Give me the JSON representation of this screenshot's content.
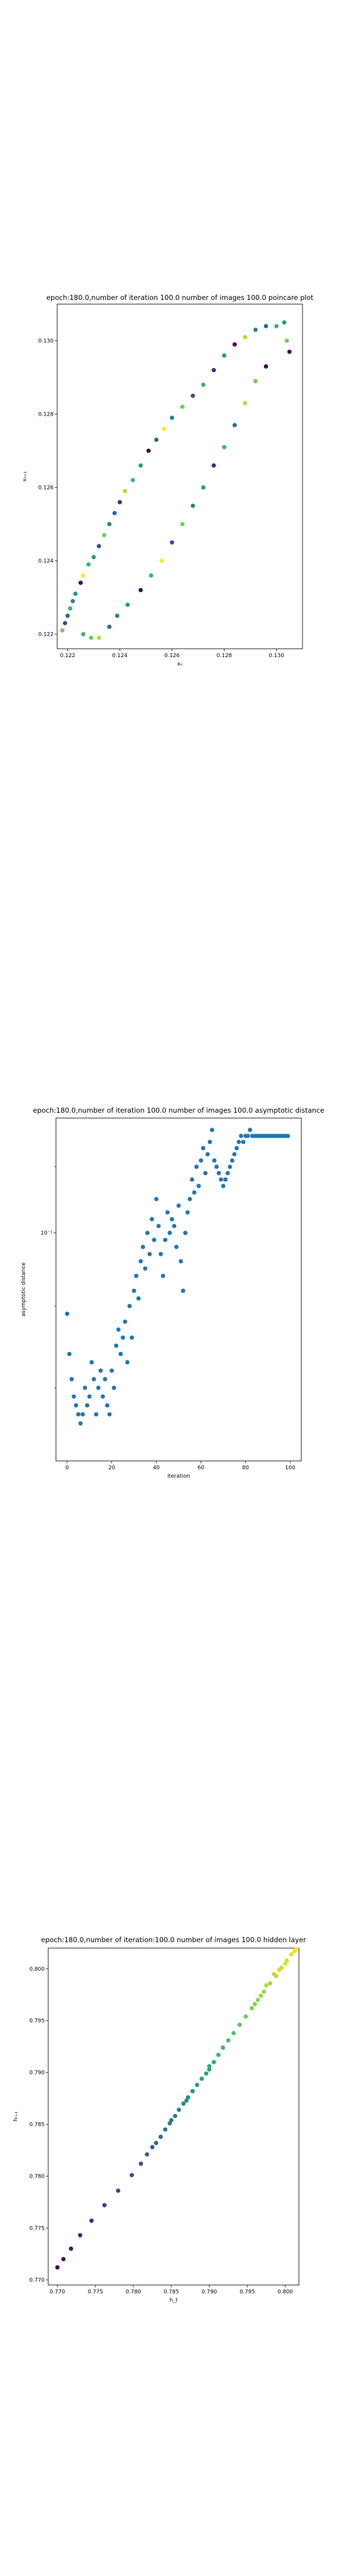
{
  "chart_data": [
    {
      "type": "scatter",
      "title": "epoch:180.0,number of iteration 100.0 number of images 100.0 poincare plot",
      "xlabel": "xₙ",
      "ylabel": "xₙ₊₁",
      "xlim": [
        0.1216,
        0.131
      ],
      "ylim": [
        0.1216,
        0.131
      ],
      "xticks": [
        {
          "v": 0.122,
          "label": "0.122"
        },
        {
          "v": 0.124,
          "label": "0.124"
        },
        {
          "v": 0.126,
          "label": "0.126"
        },
        {
          "v": 0.128,
          "label": "0.128"
        },
        {
          "v": 0.13,
          "label": "0.130"
        }
      ],
      "yticks": [
        {
          "v": 0.122,
          "label": "0.122"
        },
        {
          "v": 0.124,
          "label": "0.124"
        },
        {
          "v": 0.126,
          "label": "0.126"
        },
        {
          "v": 0.128,
          "label": "0.128"
        },
        {
          "v": 0.13,
          "label": "0.130"
        }
      ],
      "points": [
        {
          "x": 0.1218,
          "y": 0.1221,
          "c": "#6ece58"
        },
        {
          "x": 0.1219,
          "y": 0.1223,
          "c": "#3e4a89"
        },
        {
          "x": 0.122,
          "y": 0.1225,
          "c": "#31688e"
        },
        {
          "x": 0.1221,
          "y": 0.1227,
          "c": "#35b779"
        },
        {
          "x": 0.1222,
          "y": 0.1229,
          "c": "#26828e"
        },
        {
          "x": 0.1223,
          "y": 0.1231,
          "c": "#1f9e89"
        },
        {
          "x": 0.1225,
          "y": 0.1234,
          "c": "#440154"
        },
        {
          "x": 0.1226,
          "y": 0.1236,
          "c": "#fde725"
        },
        {
          "x": 0.1228,
          "y": 0.1239,
          "c": "#35b779"
        },
        {
          "x": 0.123,
          "y": 0.1241,
          "c": "#1f9e89"
        },
        {
          "x": 0.1232,
          "y": 0.1244,
          "c": "#3e4a89"
        },
        {
          "x": 0.1234,
          "y": 0.1247,
          "c": "#6ece58"
        },
        {
          "x": 0.1236,
          "y": 0.125,
          "c": "#26828e"
        },
        {
          "x": 0.1238,
          "y": 0.1253,
          "c": "#31688e"
        },
        {
          "x": 0.124,
          "y": 0.1256,
          "c": "#482878"
        },
        {
          "x": 0.1242,
          "y": 0.1259,
          "c": "#b5de2b"
        },
        {
          "x": 0.1245,
          "y": 0.1262,
          "c": "#35b779"
        },
        {
          "x": 0.1248,
          "y": 0.1266,
          "c": "#1f9e89"
        },
        {
          "x": 0.1251,
          "y": 0.127,
          "c": "#440154"
        },
        {
          "x": 0.1254,
          "y": 0.1273,
          "c": "#31688e"
        },
        {
          "x": 0.1257,
          "y": 0.1276,
          "c": "#fde725"
        },
        {
          "x": 0.126,
          "y": 0.1279,
          "c": "#26828e"
        },
        {
          "x": 0.1264,
          "y": 0.1282,
          "c": "#6ece58"
        },
        {
          "x": 0.1268,
          "y": 0.1285,
          "c": "#3e4a89"
        },
        {
          "x": 0.1272,
          "y": 0.1288,
          "c": "#35b779"
        },
        {
          "x": 0.1276,
          "y": 0.1292,
          "c": "#482878"
        },
        {
          "x": 0.128,
          "y": 0.1296,
          "c": "#1f9e89"
        },
        {
          "x": 0.1284,
          "y": 0.1299,
          "c": "#440154"
        },
        {
          "x": 0.1288,
          "y": 0.1301,
          "c": "#b5de2b"
        },
        {
          "x": 0.1292,
          "y": 0.1303,
          "c": "#26828e"
        },
        {
          "x": 0.1296,
          "y": 0.1304,
          "c": "#31688e"
        },
        {
          "x": 0.13,
          "y": 0.1304,
          "c": "#35b779"
        },
        {
          "x": 0.1303,
          "y": 0.1305,
          "c": "#1f9e89"
        },
        {
          "x": 0.1304,
          "y": 0.13,
          "c": "#6ece58"
        },
        {
          "x": 0.1305,
          "y": 0.1297,
          "c": "#440154"
        },
        {
          "x": 0.1226,
          "y": 0.122,
          "c": "#35b779"
        },
        {
          "x": 0.1229,
          "y": 0.1219,
          "c": "#6ece58"
        },
        {
          "x": 0.1232,
          "y": 0.1219,
          "c": "#b5de2b"
        },
        {
          "x": 0.1236,
          "y": 0.1222,
          "c": "#31688e"
        },
        {
          "x": 0.1239,
          "y": 0.1225,
          "c": "#26828e"
        },
        {
          "x": 0.1243,
          "y": 0.1228,
          "c": "#1f9e89"
        },
        {
          "x": 0.1248,
          "y": 0.1232,
          "c": "#440154"
        },
        {
          "x": 0.1252,
          "y": 0.1236,
          "c": "#35b779"
        },
        {
          "x": 0.1256,
          "y": 0.124,
          "c": "#fde725"
        },
        {
          "x": 0.126,
          "y": 0.1245,
          "c": "#3e4a89"
        },
        {
          "x": 0.1264,
          "y": 0.125,
          "c": "#6ece58"
        },
        {
          "x": 0.1268,
          "y": 0.1255,
          "c": "#26828e"
        },
        {
          "x": 0.1272,
          "y": 0.126,
          "c": "#1f9e89"
        },
        {
          "x": 0.1276,
          "y": 0.1266,
          "c": "#482878"
        },
        {
          "x": 0.128,
          "y": 0.1271,
          "c": "#35b779"
        },
        {
          "x": 0.1284,
          "y": 0.1277,
          "c": "#31688e"
        },
        {
          "x": 0.1288,
          "y": 0.1283,
          "c": "#b5de2b"
        },
        {
          "x": 0.1292,
          "y": 0.1289,
          "c": "#6ece58"
        },
        {
          "x": 0.1296,
          "y": 0.1293,
          "c": "#440154"
        }
      ]
    },
    {
      "type": "scatter",
      "title": "epoch:180.0,number of iteration 100.0  number of images 100.0 asymptotic distance",
      "xlabel": "iteration",
      "ylabel": "asymptotic distance",
      "xlim": [
        -5,
        105
      ],
      "ylim": [
        0.072,
        0.118
      ],
      "yscale": "log",
      "xticks": [
        {
          "v": 0,
          "label": "0"
        },
        {
          "v": 20,
          "label": "20"
        },
        {
          "v": 40,
          "label": "40"
        },
        {
          "v": 60,
          "label": "60"
        },
        {
          "v": 80,
          "label": "80"
        },
        {
          "v": 100,
          "label": "100"
        }
      ],
      "yticks": [
        {
          "v": 0.1,
          "label": "10⁻¹"
        }
      ],
      "color": "#1f77b4",
      "points": [
        {
          "x": 0,
          "y": 0.089
        },
        {
          "x": 1,
          "y": 0.084
        },
        {
          "x": 2,
          "y": 0.081
        },
        {
          "x": 3,
          "y": 0.079
        },
        {
          "x": 4,
          "y": 0.078
        },
        {
          "x": 5,
          "y": 0.077
        },
        {
          "x": 6,
          "y": 0.076
        },
        {
          "x": 7,
          "y": 0.077
        },
        {
          "x": 8,
          "y": 0.08
        },
        {
          "x": 9,
          "y": 0.078
        },
        {
          "x": 10,
          "y": 0.079
        },
        {
          "x": 11,
          "y": 0.083
        },
        {
          "x": 12,
          "y": 0.081
        },
        {
          "x": 13,
          "y": 0.077
        },
        {
          "x": 14,
          "y": 0.08
        },
        {
          "x": 15,
          "y": 0.082
        },
        {
          "x": 16,
          "y": 0.079
        },
        {
          "x": 17,
          "y": 0.081
        },
        {
          "x": 18,
          "y": 0.078
        },
        {
          "x": 19,
          "y": 0.077
        },
        {
          "x": 20,
          "y": 0.082
        },
        {
          "x": 21,
          "y": 0.08
        },
        {
          "x": 22,
          "y": 0.085
        },
        {
          "x": 23,
          "y": 0.087
        },
        {
          "x": 24,
          "y": 0.084
        },
        {
          "x": 25,
          "y": 0.086
        },
        {
          "x": 26,
          "y": 0.088
        },
        {
          "x": 27,
          "y": 0.083
        },
        {
          "x": 28,
          "y": 0.09
        },
        {
          "x": 29,
          "y": 0.086
        },
        {
          "x": 30,
          "y": 0.092
        },
        {
          "x": 31,
          "y": 0.094
        },
        {
          "x": 32,
          "y": 0.091
        },
        {
          "x": 33,
          "y": 0.096
        },
        {
          "x": 34,
          "y": 0.098
        },
        {
          "x": 35,
          "y": 0.095
        },
        {
          "x": 36,
          "y": 0.1
        },
        {
          "x": 37,
          "y": 0.097
        },
        {
          "x": 38,
          "y": 0.102
        },
        {
          "x": 39,
          "y": 0.099
        },
        {
          "x": 40,
          "y": 0.105
        },
        {
          "x": 41,
          "y": 0.101
        },
        {
          "x": 42,
          "y": 0.097
        },
        {
          "x": 43,
          "y": 0.094
        },
        {
          "x": 44,
          "y": 0.099
        },
        {
          "x": 45,
          "y": 0.103
        },
        {
          "x": 46,
          "y": 0.1
        },
        {
          "x": 47,
          "y": 0.102
        },
        {
          "x": 48,
          "y": 0.101
        },
        {
          "x": 49,
          "y": 0.098
        },
        {
          "x": 50,
          "y": 0.104
        },
        {
          "x": 51,
          "y": 0.096
        },
        {
          "x": 52,
          "y": 0.092
        },
        {
          "x": 53,
          "y": 0.1
        },
        {
          "x": 54,
          "y": 0.103
        },
        {
          "x": 55,
          "y": 0.105
        },
        {
          "x": 56,
          "y": 0.108
        },
        {
          "x": 57,
          "y": 0.106
        },
        {
          "x": 58,
          "y": 0.11
        },
        {
          "x": 59,
          "y": 0.107
        },
        {
          "x": 60,
          "y": 0.111
        },
        {
          "x": 61,
          "y": 0.113
        },
        {
          "x": 62,
          "y": 0.109
        },
        {
          "x": 63,
          "y": 0.112
        },
        {
          "x": 64,
          "y": 0.114
        },
        {
          "x": 65,
          "y": 0.116
        },
        {
          "x": 66,
          "y": 0.111
        },
        {
          "x": 67,
          "y": 0.11
        },
        {
          "x": 68,
          "y": 0.109
        },
        {
          "x": 69,
          "y": 0.108
        },
        {
          "x": 70,
          "y": 0.107
        },
        {
          "x": 71,
          "y": 0.108
        },
        {
          "x": 72,
          "y": 0.109
        },
        {
          "x": 73,
          "y": 0.11
        },
        {
          "x": 74,
          "y": 0.111
        },
        {
          "x": 75,
          "y": 0.112
        },
        {
          "x": 76,
          "y": 0.113
        },
        {
          "x": 77,
          "y": 0.114
        },
        {
          "x": 78,
          "y": 0.115
        },
        {
          "x": 79,
          "y": 0.114
        },
        {
          "x": 80,
          "y": 0.115
        },
        {
          "x": 81,
          "y": 0.115
        },
        {
          "x": 82,
          "y": 0.116
        },
        {
          "x": 83,
          "y": 0.115
        },
        {
          "x": 84,
          "y": 0.115
        },
        {
          "x": 85,
          "y": 0.115
        },
        {
          "x": 86,
          "y": 0.115
        },
        {
          "x": 87,
          "y": 0.115
        },
        {
          "x": 88,
          "y": 0.115
        },
        {
          "x": 89,
          "y": 0.115
        },
        {
          "x": 90,
          "y": 0.115
        },
        {
          "x": 91,
          "y": 0.115
        },
        {
          "x": 92,
          "y": 0.115
        },
        {
          "x": 93,
          "y": 0.115
        },
        {
          "x": 94,
          "y": 0.115
        },
        {
          "x": 95,
          "y": 0.115
        },
        {
          "x": 96,
          "y": 0.115
        },
        {
          "x": 97,
          "y": 0.115
        },
        {
          "x": 98,
          "y": 0.115
        },
        {
          "x": 99,
          "y": 0.115
        }
      ]
    },
    {
      "type": "scatter",
      "title": "epoch:180.0,number of iteration:100.0  number of images 100.0 hidden layer",
      "xlabel": "h_t",
      "ylabel": "hₜ₊₁",
      "xlim": [
        0.7688,
        0.8018
      ],
      "ylim": [
        0.7695,
        0.802
      ],
      "xticks": [
        {
          "v": 0.77,
          "label": "0.770"
        },
        {
          "v": 0.775,
          "label": "0.775"
        },
        {
          "v": 0.78,
          "label": "0.780"
        },
        {
          "v": 0.785,
          "label": "0.785"
        },
        {
          "v": 0.79,
          "label": "0.790"
        },
        {
          "v": 0.795,
          "label": "0.795"
        },
        {
          "v": 0.8,
          "label": "0.800"
        }
      ],
      "yticks": [
        {
          "v": 0.77,
          "label": "0.770"
        },
        {
          "v": 0.775,
          "label": "0.775"
        },
        {
          "v": 0.78,
          "label": "0.780"
        },
        {
          "v": 0.785,
          "label": "0.785"
        },
        {
          "v": 0.79,
          "label": "0.790"
        },
        {
          "v": 0.795,
          "label": "0.795"
        },
        {
          "v": 0.8,
          "label": "0.800"
        }
      ],
      "points": [
        {
          "x": 0.77,
          "y": 0.7712,
          "c": "#440154"
        },
        {
          "x": 0.7708,
          "y": 0.772,
          "c": "#46085c"
        },
        {
          "x": 0.7718,
          "y": 0.773,
          "c": "#481467"
        },
        {
          "x": 0.773,
          "y": 0.7743,
          "c": "#482071"
        },
        {
          "x": 0.7745,
          "y": 0.7757,
          "c": "#472c7a"
        },
        {
          "x": 0.7762,
          "y": 0.7772,
          "c": "#453781"
        },
        {
          "x": 0.778,
          "y": 0.7786,
          "c": "#414487"
        },
        {
          "x": 0.7798,
          "y": 0.7801,
          "c": "#3e4c8a"
        },
        {
          "x": 0.781,
          "y": 0.7812,
          "c": "#3b528b"
        },
        {
          "x": 0.7818,
          "y": 0.7821,
          "c": "#38598c"
        },
        {
          "x": 0.7825,
          "y": 0.7828,
          "c": "#355f8d"
        },
        {
          "x": 0.783,
          "y": 0.7832,
          "c": "#32658e"
        },
        {
          "x": 0.7836,
          "y": 0.7838,
          "c": "#2f6b8e"
        },
        {
          "x": 0.7842,
          "y": 0.7845,
          "c": "#2c718e"
        },
        {
          "x": 0.7848,
          "y": 0.7851,
          "c": "#2a788e"
        },
        {
          "x": 0.7855,
          "y": 0.7858,
          "c": "#277e8e"
        },
        {
          "x": 0.786,
          "y": 0.7864,
          "c": "#25848e"
        },
        {
          "x": 0.7866,
          "y": 0.787,
          "c": "#228a8d"
        },
        {
          "x": 0.7872,
          "y": 0.7876,
          "c": "#20908c"
        },
        {
          "x": 0.7878,
          "y": 0.7882,
          "c": "#1f968b"
        },
        {
          "x": 0.7884,
          "y": 0.7888,
          "c": "#1e9c89"
        },
        {
          "x": 0.789,
          "y": 0.7894,
          "c": "#1fa287"
        },
        {
          "x": 0.7896,
          "y": 0.7899,
          "c": "#21a685"
        },
        {
          "x": 0.79,
          "y": 0.7903,
          "c": "#22a884"
        },
        {
          "x": 0.7906,
          "y": 0.791,
          "c": "#26ad81"
        },
        {
          "x": 0.7912,
          "y": 0.7917,
          "c": "#2fb47c"
        },
        {
          "x": 0.7918,
          "y": 0.7924,
          "c": "#37b878"
        },
        {
          "x": 0.7925,
          "y": 0.7931,
          "c": "#42be71"
        },
        {
          "x": 0.7932,
          "y": 0.7938,
          "c": "#4cc26c"
        },
        {
          "x": 0.794,
          "y": 0.7946,
          "c": "#5ac864"
        },
        {
          "x": 0.7948,
          "y": 0.7954,
          "c": "#67cc5c"
        },
        {
          "x": 0.7956,
          "y": 0.7962,
          "c": "#75d054"
        },
        {
          "x": 0.7964,
          "y": 0.797,
          "c": "#84d44b"
        },
        {
          "x": 0.7972,
          "y": 0.7978,
          "c": "#93d741"
        },
        {
          "x": 0.798,
          "y": 0.7986,
          "c": "#a2da37"
        },
        {
          "x": 0.7988,
          "y": 0.7993,
          "c": "#b2dd2d"
        },
        {
          "x": 0.7995,
          "y": 0.8001,
          "c": "#c2df23"
        },
        {
          "x": 0.8002,
          "y": 0.8008,
          "c": "#d2e21b"
        },
        {
          "x": 0.8008,
          "y": 0.8014,
          "c": "#e2e418"
        },
        {
          "x": 0.8012,
          "y": 0.8017,
          "c": "#f1e51d"
        },
        {
          "x": 0.8015,
          "y": 0.8019,
          "c": "#fde725"
        },
        {
          "x": 0.7985,
          "y": 0.7995,
          "c": "#c2df23"
        },
        {
          "x": 0.7992,
          "y": 0.7999,
          "c": "#d2e21b"
        },
        {
          "x": 0.8,
          "y": 0.8005,
          "c": "#e2e418"
        },
        {
          "x": 0.7975,
          "y": 0.7984,
          "c": "#b2dd2d"
        },
        {
          "x": 0.7968,
          "y": 0.7974,
          "c": "#93d741"
        },
        {
          "x": 0.796,
          "y": 0.7966,
          "c": "#84d44b"
        },
        {
          "x": 0.79,
          "y": 0.7906,
          "c": "#26ad81"
        },
        {
          "x": 0.787,
          "y": 0.7873,
          "c": "#228a8d"
        },
        {
          "x": 0.785,
          "y": 0.7854,
          "c": "#2a788e"
        }
      ]
    }
  ]
}
